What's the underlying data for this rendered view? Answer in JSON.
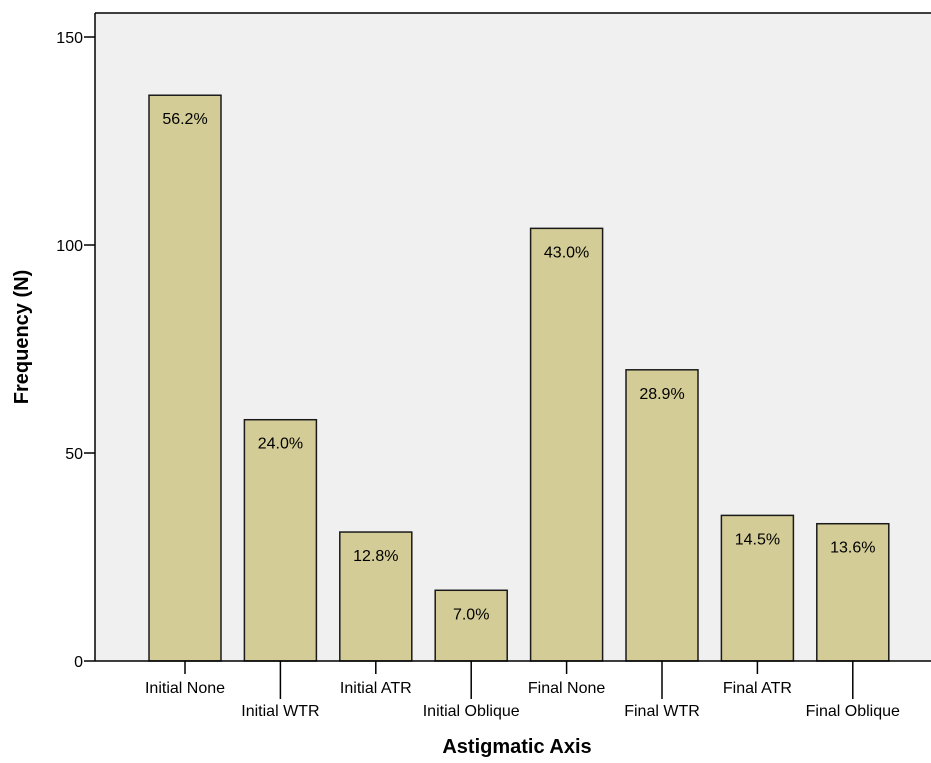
{
  "chart_data": {
    "type": "bar",
    "title": "",
    "xlabel": "Astigmatic Axis",
    "ylabel": "Frequency (N)",
    "ylim": [
      0,
      155
    ],
    "yticks": [
      0,
      50,
      100,
      150
    ],
    "grid": false,
    "categories": [
      "Initial None",
      "Initial WTR",
      "Initial ATR",
      "Initial Oblique",
      "Final None",
      "Final WTR",
      "Final ATR",
      "Final Oblique"
    ],
    "values": [
      136,
      58,
      31,
      17,
      104,
      70,
      35,
      33
    ],
    "data_labels": [
      "56.2%",
      "24.0%",
      "12.8%",
      "7.0%",
      "43.0%",
      "28.9%",
      "14.5%",
      "13.6%"
    ],
    "colors": {
      "bar_fill": "#d3cc96",
      "bar_stroke": "#1a1a1a",
      "plot_bg": "#f0f0f0",
      "axis": "#000000"
    }
  }
}
